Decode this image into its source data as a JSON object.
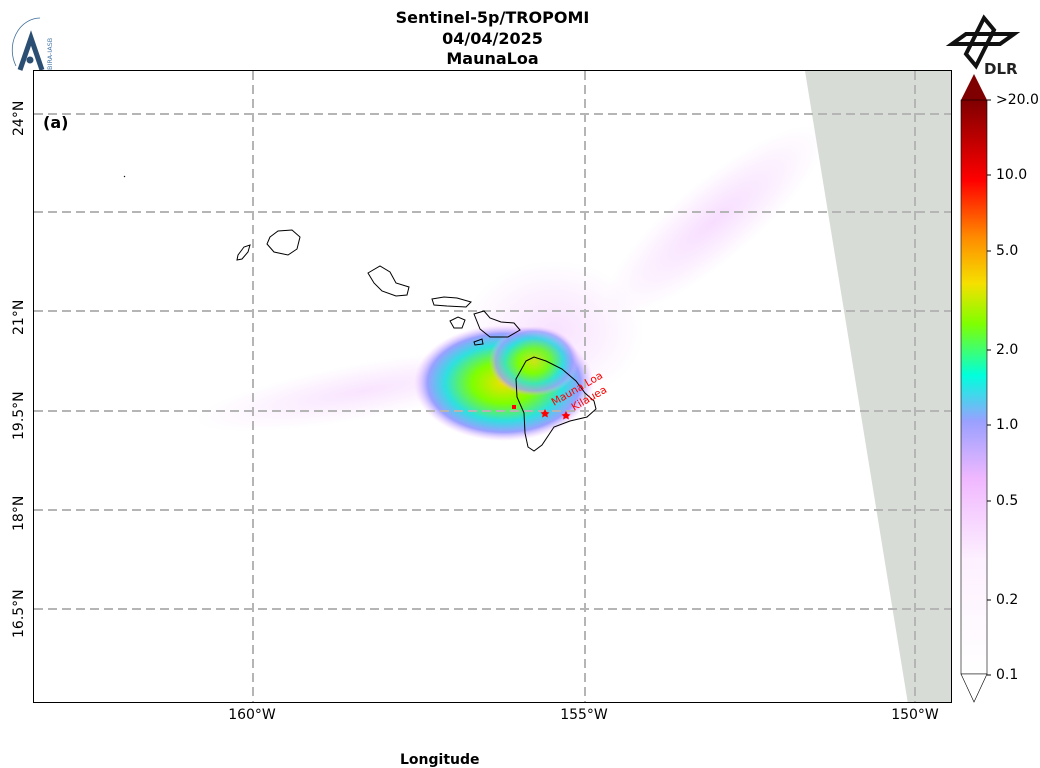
{
  "header": {
    "line1": "Sentinel-5p/TROPOMI",
    "line2": "04/04/2025",
    "line3": "MaunaLoa"
  },
  "logos": {
    "left_text": "BIRA-IASB",
    "right_text": "DLR"
  },
  "map": {
    "panel_label": "(a)",
    "x_ticks": [
      "160°W",
      "155°W",
      "150°W"
    ],
    "y_ticks": [
      "24°N",
      "21°N",
      "19.5°N",
      "18°N",
      "16.5°N"
    ],
    "xlabel": "Longitude",
    "volcano_labels": [
      "Mauna Loa",
      "Kilauea"
    ],
    "marker_color": "#ff0000",
    "no_data_color": "#d7dcd6"
  },
  "colorbar": {
    "ticks": [
      ">20.0",
      "10.0",
      "5.0",
      "2.0",
      "1.0",
      "0.5",
      "0.2",
      "0.1"
    ],
    "colors": [
      "#7f0000",
      "#ff0000",
      "#ff8c00",
      "#f5e000",
      "#7fff00",
      "#00ffdd",
      "#9aa0ff",
      "#f0b8ff",
      "#ffffff"
    ]
  }
}
